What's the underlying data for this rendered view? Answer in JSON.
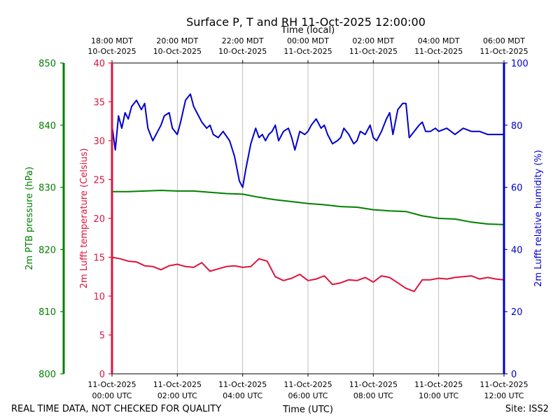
{
  "chart_data": {
    "type": "line",
    "title": "Surface P, T and RH 11-Oct-2025 12:00:00",
    "top_axis_label": "Time (local)",
    "top_ticks": [
      {
        "line1": "18:00 MDT",
        "line2": "10-Oct-2025"
      },
      {
        "line1": "20:00 MDT",
        "line2": "10-Oct-2025"
      },
      {
        "line1": "22:00 MDT",
        "line2": "10-Oct-2025"
      },
      {
        "line1": "00:00 MDT",
        "line2": "11-Oct-2025"
      },
      {
        "line1": "02:00 MDT",
        "line2": "11-Oct-2025"
      },
      {
        "line1": "04:00 MDT",
        "line2": "11-Oct-2025"
      },
      {
        "line1": "06:00 MDT",
        "line2": "11-Oct-2025"
      }
    ],
    "bottom_axis_label": "Time (UTC)",
    "bottom_ticks": [
      {
        "line1": "11-Oct-2025",
        "line2": "00:00 UTC"
      },
      {
        "line1": "11-Oct-2025",
        "line2": "02:00 UTC"
      },
      {
        "line1": "11-Oct-2025",
        "line2": "04:00 UTC"
      },
      {
        "line1": "11-Oct-2025",
        "line2": "06:00 UTC"
      },
      {
        "line1": "11-Oct-2025",
        "line2": "08:00 UTC"
      },
      {
        "line1": "11-Oct-2025",
        "line2": "10:00 UTC"
      },
      {
        "line1": "11-Oct-2025",
        "line2": "12:00 UTC"
      }
    ],
    "x_range_hours": [
      0,
      12
    ],
    "grid": "vertical",
    "axes": {
      "pressure": {
        "label": "2m PTB pressure (hPa)",
        "range": [
          800,
          850
        ],
        "ticks": [
          800,
          810,
          820,
          830,
          840,
          850
        ],
        "color": "#008000",
        "side": "left-outer"
      },
      "temperature": {
        "label": "2m Lufft temperature (Celsius)",
        "range": [
          0,
          40
        ],
        "ticks": [
          0,
          5,
          10,
          15,
          20,
          25,
          30,
          35,
          40
        ],
        "color": "#dc143c",
        "side": "left"
      },
      "humidity": {
        "label": "2m Lufft relative humidity (%)",
        "range": [
          0,
          100
        ],
        "ticks": [
          0,
          20,
          40,
          60,
          80,
          100
        ],
        "color": "#0000cd",
        "side": "right"
      }
    },
    "series": [
      {
        "name": "2m PTB pressure (hPa)",
        "axis": "pressure",
        "color": "#008000",
        "x": [
          0,
          0.5,
          1,
          1.5,
          2,
          2.5,
          3,
          3.5,
          4,
          4.5,
          5,
          5.5,
          6,
          6.5,
          7,
          7.5,
          8,
          8.5,
          9,
          9.5,
          10,
          10.5,
          11,
          11.5,
          12
        ],
        "values": [
          829.3,
          829.3,
          829.4,
          829.5,
          829.4,
          829.4,
          829.2,
          829.0,
          828.9,
          828.4,
          828.0,
          827.7,
          827.4,
          827.2,
          826.9,
          826.8,
          826.4,
          826.2,
          826.1,
          825.4,
          825.0,
          824.9,
          824.4,
          824.1,
          824.0
        ]
      },
      {
        "name": "2m Lufft temperature (Celsius)",
        "axis": "temperature",
        "color": "#dc143c",
        "x": [
          0,
          0.25,
          0.5,
          0.75,
          1,
          1.25,
          1.5,
          1.75,
          2,
          2.25,
          2.5,
          2.75,
          3,
          3.25,
          3.5,
          3.75,
          4,
          4.25,
          4.5,
          4.75,
          5,
          5.25,
          5.5,
          5.75,
          6,
          6.25,
          6.5,
          6.75,
          7,
          7.25,
          7.5,
          7.75,
          8,
          8.25,
          8.5,
          8.75,
          9,
          9.25,
          9.5,
          9.75,
          10,
          10.25,
          10.5,
          10.75,
          11,
          11.25,
          11.5,
          11.75,
          12
        ],
        "values": [
          15.0,
          14.8,
          14.5,
          14.4,
          13.9,
          13.8,
          13.4,
          13.9,
          14.1,
          13.8,
          13.7,
          14.3,
          13.2,
          13.5,
          13.8,
          13.9,
          13.7,
          13.8,
          14.8,
          14.5,
          12.5,
          12.0,
          12.3,
          12.8,
          12.0,
          12.2,
          12.6,
          11.5,
          11.7,
          12.1,
          12.0,
          12.4,
          11.8,
          12.6,
          12.4,
          11.7,
          11.0,
          10.6,
          12.1,
          12.1,
          12.3,
          12.2,
          12.4,
          12.5,
          12.6,
          12.2,
          12.4,
          12.2,
          12.1
        ]
      },
      {
        "name": "2m Lufft relative humidity (%)",
        "axis": "humidity",
        "color": "#0000cd",
        "x": [
          0,
          0.1,
          0.2,
          0.3,
          0.4,
          0.5,
          0.6,
          0.75,
          0.9,
          1.0,
          1.1,
          1.25,
          1.4,
          1.5,
          1.6,
          1.75,
          1.85,
          2.0,
          2.1,
          2.25,
          2.4,
          2.5,
          2.6,
          2.75,
          2.9,
          3.0,
          3.1,
          3.25,
          3.4,
          3.6,
          3.75,
          3.9,
          4.0,
          4.1,
          4.25,
          4.4,
          4.5,
          4.6,
          4.7,
          4.8,
          4.9,
          5.0,
          5.1,
          5.25,
          5.4,
          5.5,
          5.6,
          5.75,
          5.9,
          6.0,
          6.1,
          6.25,
          6.4,
          6.5,
          6.6,
          6.75,
          6.9,
          7.0,
          7.1,
          7.25,
          7.4,
          7.5,
          7.6,
          7.75,
          7.9,
          8.0,
          8.1,
          8.25,
          8.4,
          8.5,
          8.6,
          8.75,
          8.9,
          9.0,
          9.1,
          9.25,
          9.4,
          9.5,
          9.6,
          9.75,
          9.9,
          10.0,
          10.25,
          10.5,
          10.75,
          11.0,
          11.25,
          11.5,
          11.75,
          12.0
        ],
        "values": [
          80,
          72,
          83,
          79,
          84,
          82,
          86,
          88,
          85,
          87,
          79,
          75,
          78,
          80,
          83,
          84,
          79,
          77,
          81,
          88,
          90,
          86,
          84,
          81,
          79,
          80,
          77,
          76,
          78,
          75,
          70,
          62,
          60,
          66,
          74,
          79,
          76,
          77,
          75,
          77,
          78,
          80,
          75,
          78,
          79,
          76,
          72,
          78,
          77,
          78,
          80,
          82,
          79,
          80,
          77,
          74,
          75,
          76,
          79,
          77,
          74,
          75,
          78,
          77,
          80,
          76,
          75,
          78,
          82,
          84,
          77,
          85,
          87,
          87,
          76,
          78,
          80,
          81,
          78,
          78,
          79,
          78,
          79,
          77,
          79,
          78,
          78,
          77,
          77,
          77
        ]
      }
    ]
  },
  "footer": {
    "left_note": "REAL TIME DATA, NOT CHECKED FOR QUALITY",
    "site": "Site: ISS2"
  }
}
